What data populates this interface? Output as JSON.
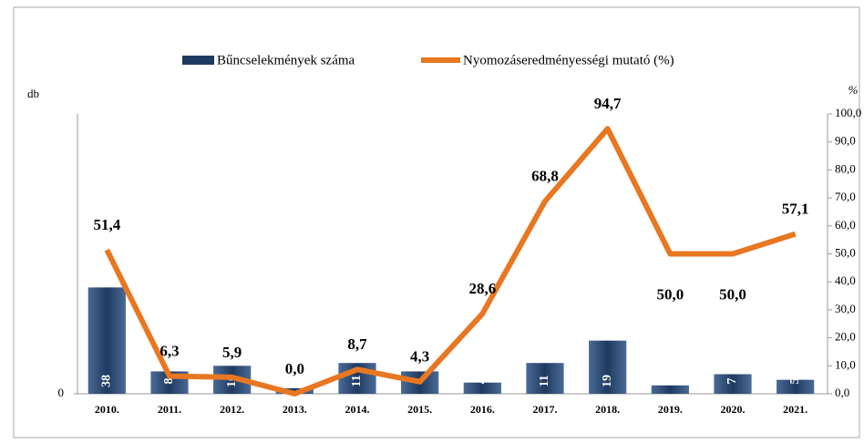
{
  "chart_data": {
    "type": "bar",
    "legend_position": "top",
    "ylabel": "db",
    "y2label": "%",
    "categories": [
      "2010.",
      "2011.",
      "2012.",
      "2013.",
      "2014.",
      "2015.",
      "2016.",
      "2017.",
      "2018.",
      "2019.",
      "2020.",
      "2021."
    ],
    "ylim": [
      0,
      100
    ],
    "yticks": [
      0
    ],
    "y2lim": [
      0,
      100
    ],
    "y2ticks": [
      {
        "value": 0,
        "label": "0,0"
      },
      {
        "value": 10,
        "label": "10,0"
      },
      {
        "value": 20,
        "label": "20,0"
      },
      {
        "value": 30,
        "label": "30,0"
      },
      {
        "value": 40,
        "label": "40,0"
      },
      {
        "value": 50,
        "label": "50,0"
      },
      {
        "value": 60,
        "label": "60,0"
      },
      {
        "value": 70,
        "label": "70,0"
      },
      {
        "value": 80,
        "label": "80,0"
      },
      {
        "value": 90,
        "label": "90,0"
      },
      {
        "value": 100,
        "label": "100,0"
      }
    ],
    "series": [
      {
        "name": "Bűncselekmények száma",
        "type": "bar",
        "color": "#1f3a60",
        "values": [
          38,
          8,
          10,
          2,
          11,
          8,
          4,
          11,
          19,
          3,
          7,
          5
        ]
      },
      {
        "name": "Nyomozáseredményességi mutató (%)",
        "type": "line",
        "axis": "y2",
        "color": "#e87722",
        "values": [
          51.4,
          6.3,
          5.9,
          0.0,
          8.7,
          4.3,
          28.6,
          68.8,
          94.7,
          50.0,
          50.0,
          57.1
        ],
        "value_labels": [
          "51,4",
          "6,3",
          "5,9",
          "0,0",
          "8,7",
          "4,3",
          "28,6",
          "68,8",
          "94,7",
          "50,0",
          "50,0",
          "57,1"
        ]
      }
    ]
  }
}
